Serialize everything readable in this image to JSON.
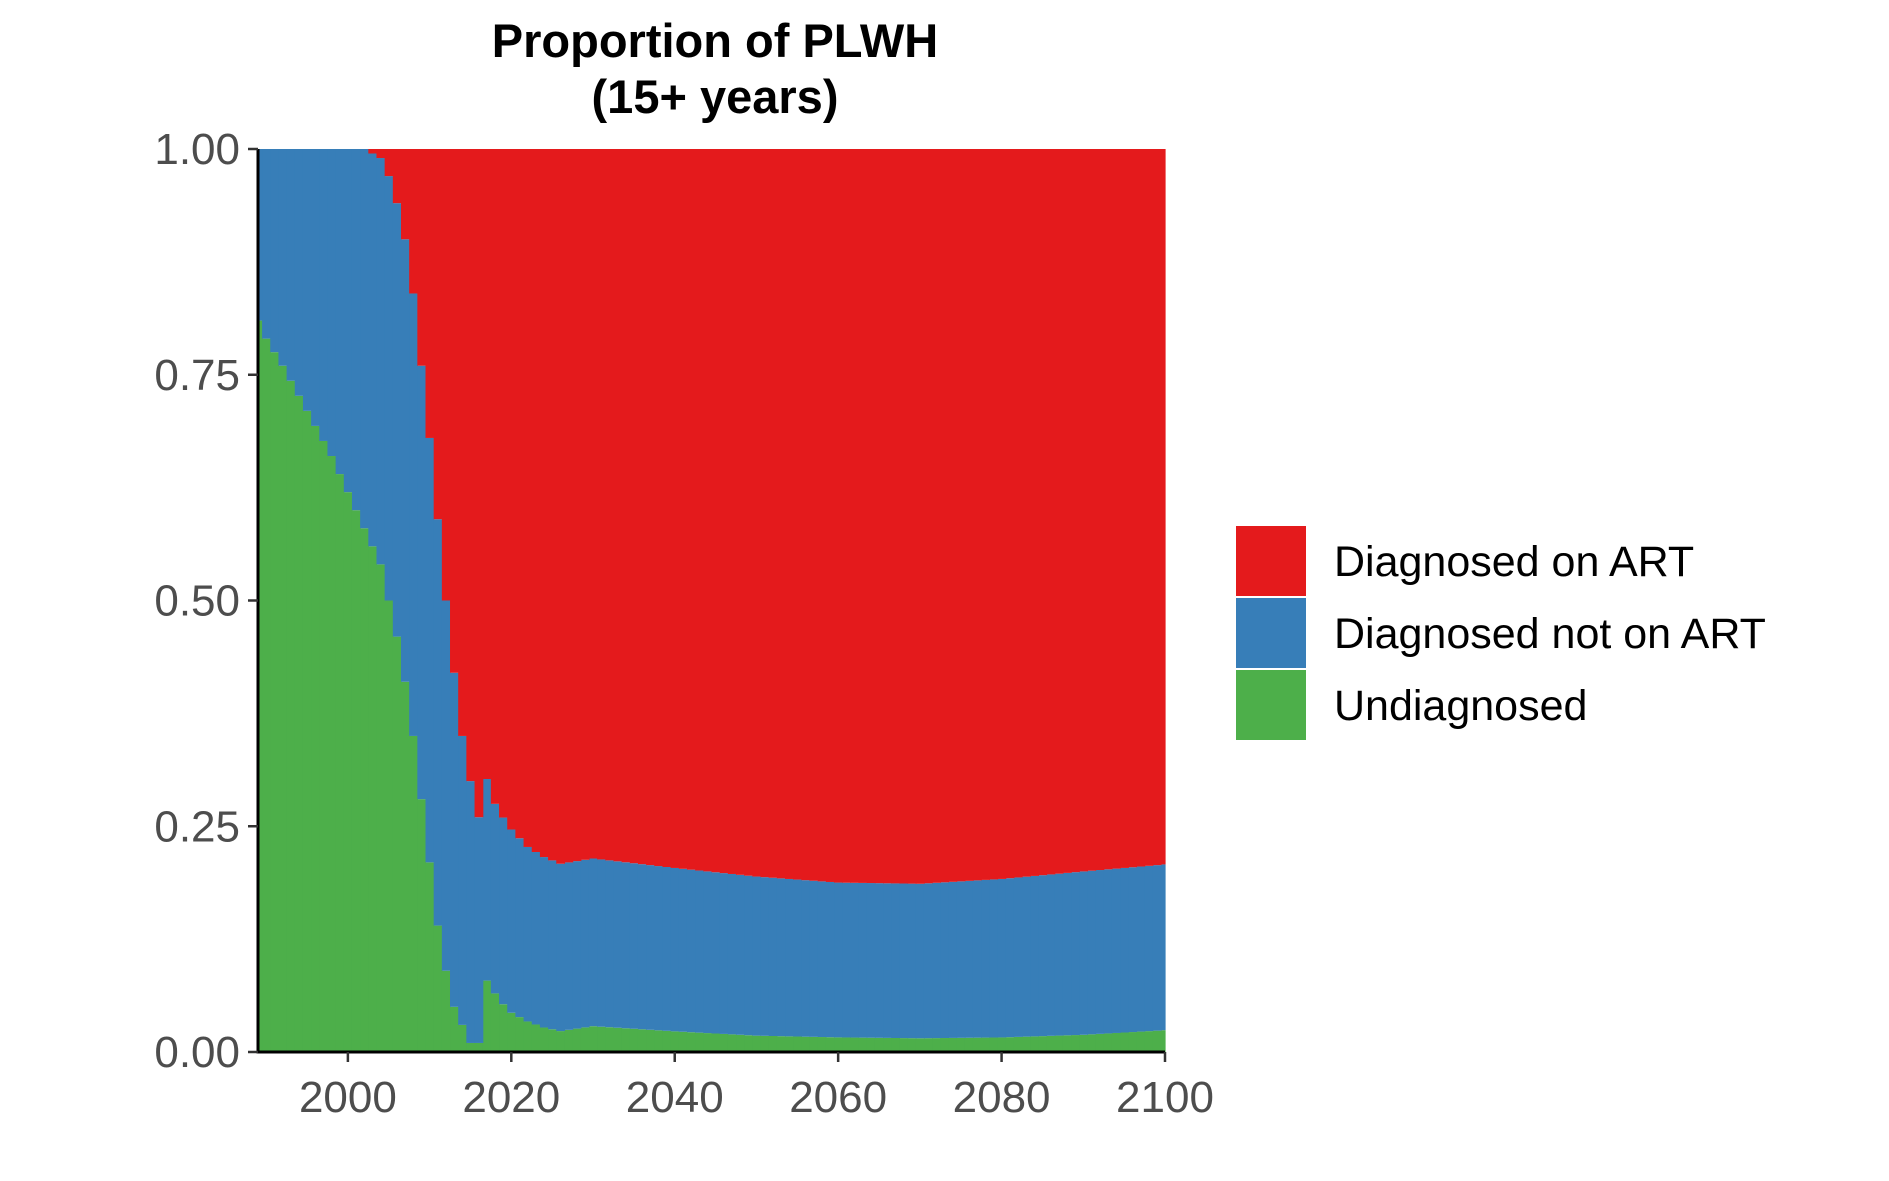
{
  "chart_data": {
    "type": "area",
    "title": "Proportion of PLWH",
    "subtitle": "(15+ years)",
    "xlabel": "",
    "ylabel": "",
    "xlim": [
      1989,
      2100
    ],
    "ylim": [
      0,
      1
    ],
    "x_ticks": [
      "2000",
      "2020",
      "2040",
      "2060",
      "2080",
      "2100"
    ],
    "y_ticks": [
      "0.00",
      "0.25",
      "0.50",
      "0.75",
      "1.00"
    ],
    "grid": false,
    "stacked": true,
    "legend_position": "right",
    "series": [
      {
        "name": "Diagnosed on ART",
        "color": "#e41a1c",
        "keypoints": [
          [
            1989,
            0
          ],
          [
            2002,
            0
          ],
          [
            2004,
            0.01
          ],
          [
            2005,
            0.03
          ],
          [
            2006,
            0.06
          ],
          [
            2007,
            0.1
          ],
          [
            2008,
            0.16
          ],
          [
            2009,
            0.24
          ],
          [
            2010,
            0.32
          ],
          [
            2011,
            0.41
          ],
          [
            2012,
            0.5
          ],
          [
            2013,
            0.58
          ],
          [
            2014,
            0.65
          ],
          [
            2015,
            0.7
          ],
          [
            2016,
            0.74
          ],
          [
            2018,
            0.76
          ],
          [
            2020,
            0.78
          ],
          [
            2021,
            0.79
          ],
          [
            2022,
            0.8
          ],
          [
            2024,
            0.81
          ],
          [
            2026,
            0.82
          ],
          [
            2030,
            0.825
          ],
          [
            2040,
            0.836
          ],
          [
            2050,
            0.846
          ],
          [
            2060,
            0.853
          ],
          [
            2070,
            0.856
          ],
          [
            2080,
            0.852
          ],
          [
            2090,
            0.84
          ],
          [
            2100,
            0.82
          ]
        ]
      },
      {
        "name": "Diagnosed not on ART",
        "color": "#377eb8",
        "keypoints": [
          [
            1989,
            0.19
          ],
          [
            1990,
            0.21
          ],
          [
            1992,
            0.24
          ],
          [
            1995,
            0.29
          ],
          [
            1998,
            0.34
          ],
          [
            2000,
            0.38
          ],
          [
            2002,
            0.42
          ],
          [
            2004,
            0.45
          ],
          [
            2005,
            0.47
          ],
          [
            2006,
            0.48
          ],
          [
            2007,
            0.49
          ],
          [
            2008,
            0.49
          ],
          [
            2009,
            0.48
          ],
          [
            2010,
            0.47
          ],
          [
            2011,
            0.45
          ],
          [
            2012,
            0.41
          ],
          [
            2013,
            0.37
          ],
          [
            2014,
            0.32
          ],
          [
            2015,
            0.29
          ],
          [
            2016,
            0.25
          ],
          [
            2017,
            0.24
          ],
          [
            2018,
            0.22
          ],
          [
            2019,
            0.215
          ],
          [
            2020,
            0.21
          ],
          [
            2022,
            0.2
          ],
          [
            2024,
            0.195
          ],
          [
            2026,
            0.192
          ],
          [
            2030,
            0.195
          ],
          [
            2040,
            0.19
          ],
          [
            2050,
            0.185
          ],
          [
            2060,
            0.18
          ],
          [
            2070,
            0.18
          ],
          [
            2080,
            0.185
          ],
          [
            2090,
            0.19
          ],
          [
            2100,
            0.19
          ]
        ]
      },
      {
        "name": "Undiagnosed",
        "color": "#4daf4a",
        "keypoints": [
          [
            1989,
            0.81
          ],
          [
            1990,
            0.79
          ],
          [
            1992,
            0.76
          ],
          [
            1995,
            0.71
          ],
          [
            1998,
            0.66
          ],
          [
            2000,
            0.62
          ],
          [
            2002,
            0.58
          ],
          [
            2004,
            0.54
          ],
          [
            2005,
            0.5
          ],
          [
            2006,
            0.46
          ],
          [
            2007,
            0.41
          ],
          [
            2008,
            0.35
          ],
          [
            2009,
            0.28
          ],
          [
            2010,
            0.21
          ],
          [
            2011,
            0.14
          ],
          [
            2012,
            0.09
          ],
          [
            2013,
            0.05
          ],
          [
            2014,
            0.03
          ],
          [
            2015,
            0.01
          ],
          [
            2016,
            0.01
          ],
          [
            2017,
            0.085
          ],
          [
            2018,
            0.068
          ],
          [
            2019,
            0.055
          ],
          [
            2020,
            0.045
          ],
          [
            2022,
            0.035
          ],
          [
            2024,
            0.028
          ],
          [
            2026,
            0.024
          ],
          [
            2030,
            0.03
          ],
          [
            2040,
            0.024
          ],
          [
            2050,
            0.019
          ],
          [
            2060,
            0.017
          ],
          [
            2070,
            0.016
          ],
          [
            2080,
            0.017
          ],
          [
            2090,
            0.02
          ],
          [
            2100,
            0.025
          ]
        ]
      }
    ]
  }
}
